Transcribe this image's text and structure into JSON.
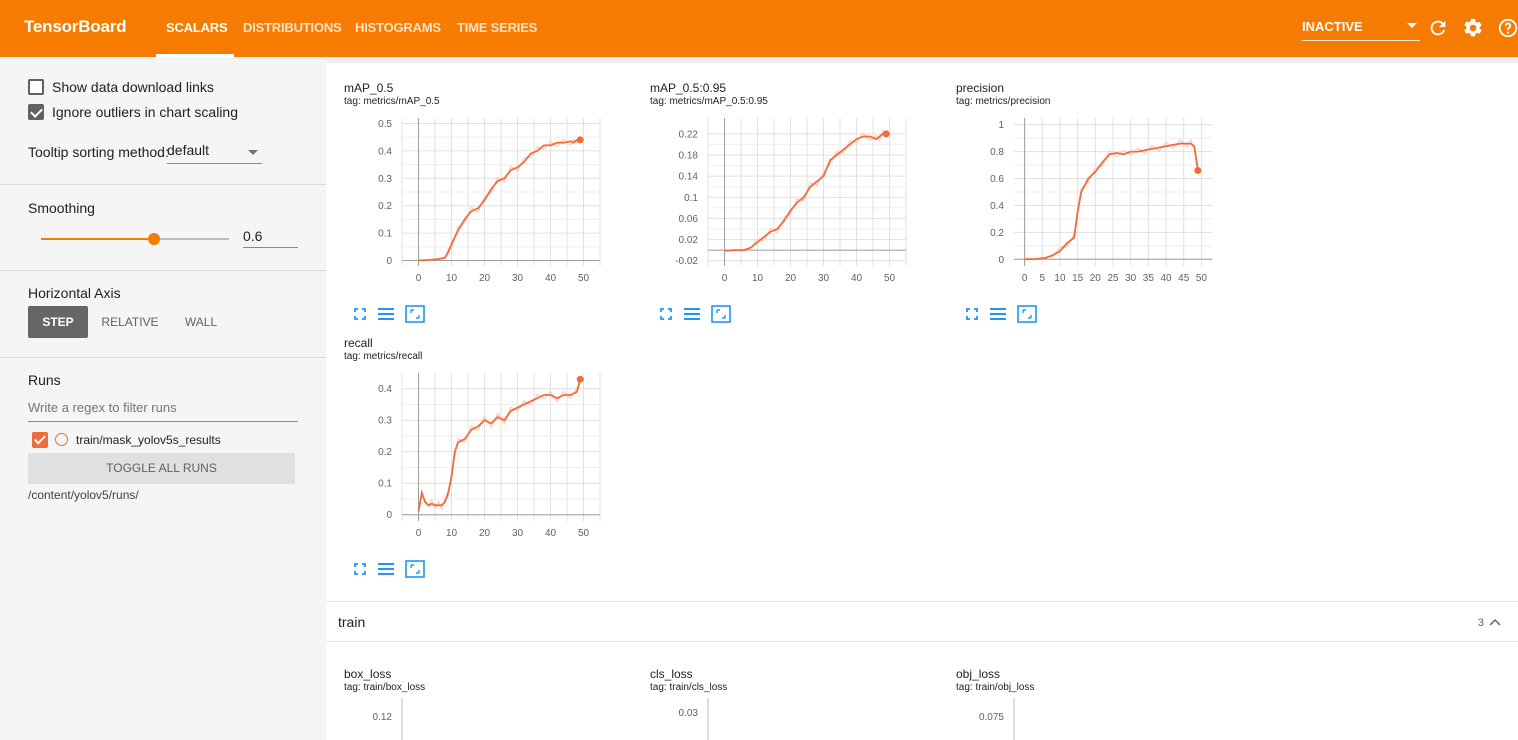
{
  "header": {
    "brand": "TensorBoard",
    "tabs": [
      {
        "label": "SCALARS",
        "active": true
      },
      {
        "label": "DISTRIBUTIONS",
        "active": false
      },
      {
        "label": "HISTOGRAMS",
        "active": false
      },
      {
        "label": "TIME SERIES",
        "active": false
      }
    ],
    "status": "INACTIVE",
    "icons": [
      "refresh-icon",
      "settings-icon",
      "help-icon"
    ],
    "colors": {
      "bar": "#f57c00"
    }
  },
  "sidebar": {
    "show_download_label": "Show data download links",
    "show_download_checked": false,
    "ignore_outliers_label": "Ignore outliers in chart scaling",
    "ignore_outliers_checked": true,
    "tooltip_label": "Tooltip sorting method:",
    "tooltip_value": "default",
    "smoothing_title": "Smoothing",
    "smoothing_value": "0.6",
    "smoothing_fraction": 0.6,
    "axis_title": "Horizontal Axis",
    "axis_options": [
      {
        "label": "STEP",
        "active": true
      },
      {
        "label": "RELATIVE",
        "active": false
      },
      {
        "label": "WALL",
        "active": false
      }
    ],
    "runs_title": "Runs",
    "filter_placeholder": "Write a regex to filter runs",
    "run_name": "train/mask_yolov5s_results",
    "toggle_label": "TOGGLE ALL RUNS",
    "logdir": "/content/yolov5/runs/"
  },
  "charts": [
    {
      "title": "mAP_0.5",
      "tag": "tag: metrics/mAP_0.5",
      "type": "line",
      "xlim": [
        -5,
        55
      ],
      "ylim": [
        -0.02,
        0.52
      ],
      "xticks": [
        "0",
        "10",
        "20",
        "30",
        "40",
        "50"
      ],
      "yticks": [
        "0",
        "0.1",
        "0.2",
        "0.3",
        "0.4",
        "0.5"
      ],
      "chart_data": {
        "type": "line",
        "x": [
          0,
          3,
          6,
          8,
          9,
          10,
          12,
          14,
          16,
          18,
          20,
          22,
          24,
          26,
          28,
          30,
          32,
          34,
          36,
          38,
          40,
          42,
          44,
          46,
          47,
          48,
          49
        ],
        "y": [
          0,
          0.002,
          0.005,
          0.01,
          0.03,
          0.06,
          0.11,
          0.15,
          0.18,
          0.19,
          0.22,
          0.26,
          0.29,
          0.3,
          0.33,
          0.34,
          0.36,
          0.39,
          0.4,
          0.42,
          0.42,
          0.43,
          0.43,
          0.435,
          0.43,
          0.44,
          0.44
        ]
      }
    },
    {
      "title": "mAP_0.5:0.95",
      "tag": "tag: metrics/mAP_0.5:0.95",
      "type": "line",
      "xlim": [
        -5,
        55
      ],
      "ylim": [
        -0.03,
        0.25
      ],
      "xticks": [
        "0",
        "10",
        "20",
        "30",
        "40",
        "50"
      ],
      "yticks": [
        "-0.02",
        "0.02",
        "0.06",
        "0.1",
        "0.14",
        "0.18",
        "0.22"
      ],
      "chart_data": {
        "type": "line",
        "x": [
          0,
          3,
          6,
          8,
          10,
          12,
          14,
          16,
          18,
          20,
          22,
          24,
          26,
          28,
          30,
          32,
          34,
          36,
          38,
          40,
          42,
          44,
          46,
          47,
          48,
          49
        ],
        "y": [
          -0.001,
          0,
          0,
          0.005,
          0.015,
          0.025,
          0.035,
          0.04,
          0.055,
          0.075,
          0.09,
          0.1,
          0.12,
          0.13,
          0.14,
          0.17,
          0.18,
          0.19,
          0.2,
          0.21,
          0.215,
          0.215,
          0.21,
          0.215,
          0.22,
          0.22
        ]
      }
    },
    {
      "title": "precision",
      "tag": "tag: metrics/precision",
      "type": "line",
      "xlim": [
        -3,
        53
      ],
      "ylim": [
        -0.05,
        1.05
      ],
      "xticks": [
        "0",
        "5",
        "10",
        "15",
        "20",
        "25",
        "30",
        "35",
        "40",
        "45",
        "50"
      ],
      "yticks": [
        "0",
        "0.2",
        "0.4",
        "0.6",
        "0.8",
        "1"
      ],
      "chart_data": {
        "type": "line",
        "x": [
          0,
          3,
          6,
          8,
          10,
          12,
          14,
          15,
          16,
          18,
          20,
          22,
          24,
          26,
          28,
          30,
          32,
          34,
          36,
          38,
          40,
          42,
          44,
          46,
          47,
          48,
          49
        ],
        "y": [
          0,
          0.002,
          0.01,
          0.03,
          0.06,
          0.12,
          0.16,
          0.35,
          0.5,
          0.6,
          0.65,
          0.72,
          0.78,
          0.79,
          0.78,
          0.8,
          0.8,
          0.81,
          0.82,
          0.83,
          0.84,
          0.85,
          0.86,
          0.86,
          0.86,
          0.84,
          0.66
        ]
      }
    },
    {
      "title": "recall",
      "tag": "tag: metrics/recall",
      "type": "line",
      "xlim": [
        -5,
        55
      ],
      "ylim": [
        -0.02,
        0.45
      ],
      "xticks": [
        "0",
        "10",
        "20",
        "30",
        "40",
        "50"
      ],
      "yticks": [
        "0",
        "0.1",
        "0.2",
        "0.3",
        "0.4"
      ],
      "chart_data": {
        "type": "line",
        "x": [
          0,
          1,
          2,
          3,
          4,
          5,
          6,
          7,
          8,
          9,
          10,
          11,
          12,
          14,
          16,
          18,
          20,
          22,
          24,
          26,
          28,
          30,
          32,
          34,
          36,
          38,
          40,
          42,
          44,
          46,
          48,
          49
        ],
        "y": [
          0.01,
          0.07,
          0.04,
          0.03,
          0.035,
          0.03,
          0.03,
          0.03,
          0.04,
          0.07,
          0.12,
          0.2,
          0.23,
          0.24,
          0.27,
          0.28,
          0.3,
          0.29,
          0.31,
          0.3,
          0.33,
          0.34,
          0.35,
          0.36,
          0.37,
          0.38,
          0.38,
          0.37,
          0.38,
          0.38,
          0.39,
          0.43
        ]
      }
    }
  ],
  "train_section": {
    "title": "train",
    "count": "3",
    "charts": [
      {
        "title": "box_loss",
        "tag": "tag: train/box_loss",
        "ytick": "0.12"
      },
      {
        "title": "cls_loss",
        "tag": "tag: train/cls_loss",
        "ytick": "0.03"
      },
      {
        "title": "obj_loss",
        "tag": "tag: train/obj_loss",
        "ytick": "0.075"
      }
    ]
  },
  "chart_data": [
    {
      "type": "line",
      "title": "mAP_0.5",
      "series": [
        {
          "name": "train/mask_yolov5s_results"
        }
      ]
    },
    {
      "type": "line",
      "title": "mAP_0.5:0.95",
      "series": [
        {
          "name": "train/mask_yolov5s_results"
        }
      ]
    },
    {
      "type": "line",
      "title": "precision",
      "series": [
        {
          "name": "train/mask_yolov5s_results"
        }
      ]
    },
    {
      "type": "line",
      "title": "recall",
      "series": [
        {
          "name": "train/mask_yolov5s_results"
        }
      ]
    }
  ],
  "colors": {
    "line": "#f26b3a",
    "line_faint": "#fbd0c0",
    "grid": "#dddddd",
    "icon_blue": "#2196f3"
  }
}
